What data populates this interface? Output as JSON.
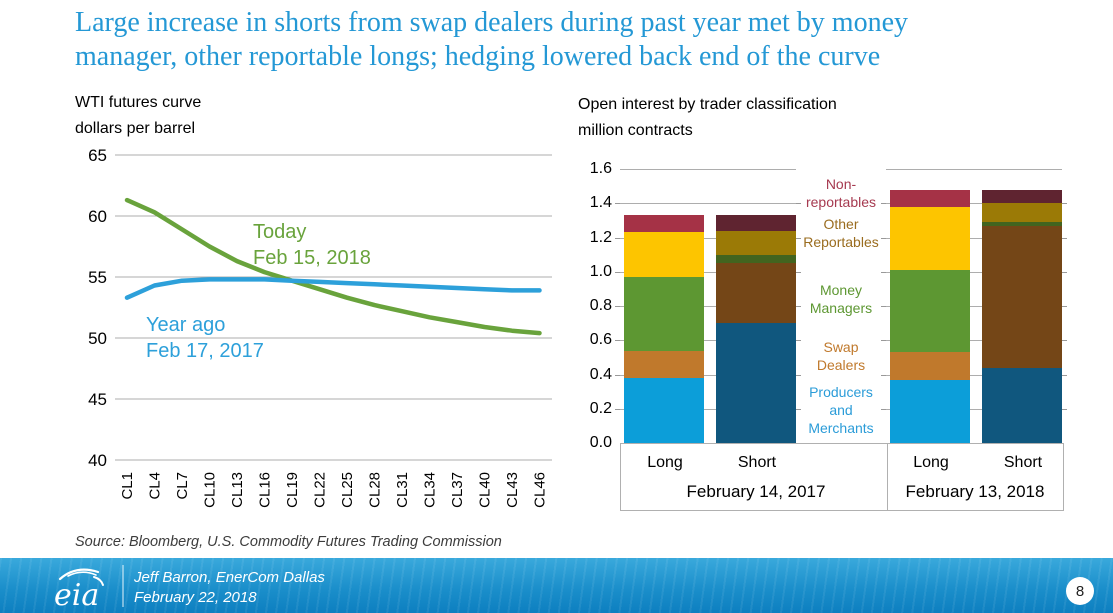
{
  "slide": {
    "title_line1": "Large increase in shorts from swap dealers during past year met by money",
    "title_line2": "manager, other reportable longs; hedging lowered back end of the curve",
    "source_note": "Source: Bloomberg, U.S. Commodity Futures Trading Commission",
    "footer": {
      "logo_text": "eia",
      "presenter_line1": "Jeff Barron, EnerCom Dallas",
      "presenter_line2": "February 22, 2018",
      "page_number": "8"
    },
    "colors": {
      "title_blue": "#2498d5",
      "gridline_gray": "#adadad"
    }
  },
  "left_chart": {
    "heading": "WTI futures curve",
    "subheading": "dollars per barrel",
    "annotations": {
      "today_line1": "Today",
      "today_line2": "Feb 15, 2018",
      "year_ago_line1": "Year ago",
      "year_ago_line2": "Feb 17, 2017"
    }
  },
  "right_chart": {
    "heading": "Open interest by trader classification",
    "subheading": "million contracts"
  },
  "chart_data": [
    {
      "type": "line",
      "title": "WTI futures curve",
      "ylabel": "dollars per barrel",
      "ylim": [
        40,
        65
      ],
      "yticks": [
        65,
        60,
        55,
        50,
        45,
        40
      ],
      "grid": true,
      "categories": [
        "CL1",
        "CL4",
        "CL7",
        "CL10",
        "CL13",
        "CL16",
        "CL19",
        "CL22",
        "CL25",
        "CL28",
        "CL31",
        "CL34",
        "CL37",
        "CL40",
        "CL43",
        "CL46"
      ],
      "series": [
        {
          "name": "Today Feb 15, 2018",
          "color": "#69a33c",
          "values": [
            61.3,
            60.3,
            58.9,
            57.5,
            56.3,
            55.4,
            54.7,
            54.0,
            53.3,
            52.7,
            52.2,
            51.7,
            51.3,
            50.9,
            50.6,
            50.4
          ]
        },
        {
          "name": "Year ago Feb 17, 2017",
          "color": "#2da0da",
          "values": [
            53.3,
            54.3,
            54.7,
            54.8,
            54.8,
            54.8,
            54.7,
            54.6,
            54.5,
            54.4,
            54.3,
            54.2,
            54.1,
            54.0,
            53.9,
            53.9
          ]
        }
      ]
    },
    {
      "type": "bar",
      "subtype": "stacked",
      "title": "Open interest by trader classification",
      "ylabel": "million contracts",
      "ylim": [
        0,
        1.6
      ],
      "yticks": [
        "1.6",
        "1.4",
        "1.2",
        "1.0",
        "0.8",
        "0.6",
        "0.4",
        "0.2",
        "0.0"
      ],
      "grid": true,
      "segment_order_bottom_to_top": [
        "Producers and Merchants",
        "Swap Dealers",
        "Money Managers",
        "Other Reportables",
        "Non-reportables"
      ],
      "colors": {
        "long": [
          "#0c9ed9",
          "#c0792c",
          "#5d9732",
          "#fdc500",
          "#a53246"
        ],
        "short": [
          "#10577e",
          "#744617",
          "#42641f",
          "#9b7a06",
          "#5f2430"
        ]
      },
      "groups": [
        {
          "label": "February 14, 2017",
          "bars": [
            {
              "label": "Long",
              "shade": "long",
              "values": [
                0.38,
                0.16,
                0.43,
                0.26,
                0.1
              ],
              "total": 1.33
            },
            {
              "label": "Short",
              "shade": "short",
              "values": [
                0.7,
                0.35,
                0.05,
                0.14,
                0.09
              ],
              "total": 1.33
            }
          ]
        },
        {
          "label": "February 13, 2018",
          "bars": [
            {
              "label": "Long",
              "shade": "long",
              "values": [
                0.37,
                0.16,
                0.48,
                0.37,
                0.1
              ],
              "total": 1.48
            },
            {
              "label": "Short",
              "shade": "short",
              "values": [
                0.44,
                0.83,
                0.02,
                0.11,
                0.08
              ],
              "total": 1.48
            }
          ]
        }
      ],
      "legend_position": "center-between-groups",
      "legend": [
        {
          "lines": [
            "Non-",
            "reportables"
          ],
          "text_color": "#a63a50"
        },
        {
          "lines": [
            "Other",
            "Reportables"
          ],
          "text_color": "#9a6c1f"
        },
        {
          "lines": [
            "Money",
            "Managers"
          ],
          "text_color": "#5d9732"
        },
        {
          "lines": [
            "Swap",
            "Dealers"
          ],
          "text_color": "#c0792c"
        },
        {
          "lines": [
            "Producers",
            "and",
            "Merchants"
          ],
          "text_color": "#2b9cd8"
        }
      ]
    }
  ]
}
